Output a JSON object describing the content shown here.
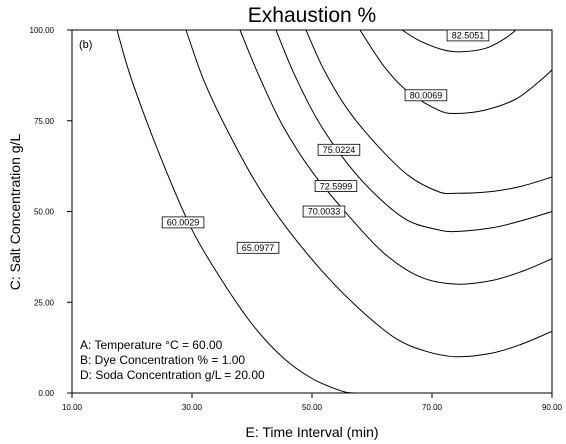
{
  "chart_data": {
    "type": "contour",
    "title": "Exhaustion %",
    "xlabel": "E: Time Interval (min)",
    "ylabel": "C: Salt Concentration g/L",
    "xlim": [
      10,
      90
    ],
    "ylim": [
      0,
      100
    ],
    "x_ticks": [
      "10.00",
      "30.00",
      "50.00",
      "70.00",
      "90.00"
    ],
    "y_ticks": [
      "0.00",
      "25.00",
      "50.00",
      "75.00",
      "100.00"
    ],
    "panel_tag": "(b)",
    "grid": false,
    "annotations": [
      "A: Temperature °C = 60.00",
      "B: Dye Concentration % = 1.00",
      "D: Soda Concentration g/L = 20.00"
    ],
    "contours": [
      {
        "label": "60.0029",
        "points": [
          [
            17.5,
            100
          ],
          [
            20,
            86
          ],
          [
            25,
            64
          ],
          [
            30,
            45
          ],
          [
            35,
            31
          ],
          [
            40,
            19
          ],
          [
            45,
            10
          ],
          [
            50,
            4
          ],
          [
            55,
            0.5
          ],
          [
            57,
            0
          ]
        ],
        "label_at": [
          28.5,
          47
        ]
      },
      {
        "label": "65.0977",
        "points": [
          [
            29,
            100
          ],
          [
            32,
            86
          ],
          [
            36,
            72
          ],
          [
            41,
            57
          ],
          [
            46,
            45
          ],
          [
            52,
            33
          ],
          [
            58,
            23
          ],
          [
            64,
            15
          ],
          [
            69,
            11.5
          ],
          [
            74,
            10
          ],
          [
            80,
            11
          ],
          [
            85,
            13.5
          ],
          [
            90,
            17
          ]
        ],
        "label_at": [
          41,
          40
        ]
      },
      {
        "label": "70.0033",
        "points": [
          [
            38,
            100
          ],
          [
            41,
            88
          ],
          [
            45,
            74
          ],
          [
            50,
            61
          ],
          [
            56,
            49
          ],
          [
            62,
            38.5
          ],
          [
            68,
            32
          ],
          [
            74,
            30
          ],
          [
            80,
            31
          ],
          [
            85,
            33.5
          ],
          [
            90,
            37
          ]
        ],
        "label_at": [
          52,
          50
        ]
      },
      {
        "label": "72.5999",
        "points": [
          [
            44,
            100
          ],
          [
            47,
            88
          ],
          [
            51,
            75
          ],
          [
            56,
            63
          ],
          [
            61,
            54
          ],
          [
            66,
            47.5
          ],
          [
            71,
            45
          ],
          [
            74,
            44.5
          ],
          [
            80,
            45.5
          ],
          [
            85,
            47.5
          ],
          [
            90,
            50
          ]
        ],
        "label_at": [
          54,
          57
        ]
      },
      {
        "label": "75.0224",
        "points": [
          [
            49,
            100
          ],
          [
            52,
            89
          ],
          [
            56,
            78
          ],
          [
            61,
            68
          ],
          [
            66,
            60
          ],
          [
            71,
            55.5
          ],
          [
            74,
            55
          ],
          [
            80,
            55.5
          ],
          [
            85,
            57
          ],
          [
            90,
            59.5
          ]
        ],
        "label_at": [
          54.5,
          67
        ]
      },
      {
        "label": "80.0069",
        "points": [
          [
            58,
            100
          ],
          [
            62,
            90
          ],
          [
            66,
            83
          ],
          [
            71,
            78
          ],
          [
            74,
            77
          ],
          [
            79,
            78
          ],
          [
            84,
            81
          ],
          [
            88,
            86
          ],
          [
            90,
            89
          ]
        ],
        "label_at": [
          69,
          82
        ]
      },
      {
        "label": "82.5051",
        "points": [
          [
            65,
            100
          ],
          [
            68,
            97
          ],
          [
            72,
            94.5
          ],
          [
            75,
            94
          ],
          [
            79,
            95
          ],
          [
            82,
            97.5
          ],
          [
            84,
            100
          ]
        ],
        "label_at": [
          76,
          98.5
        ]
      }
    ]
  }
}
